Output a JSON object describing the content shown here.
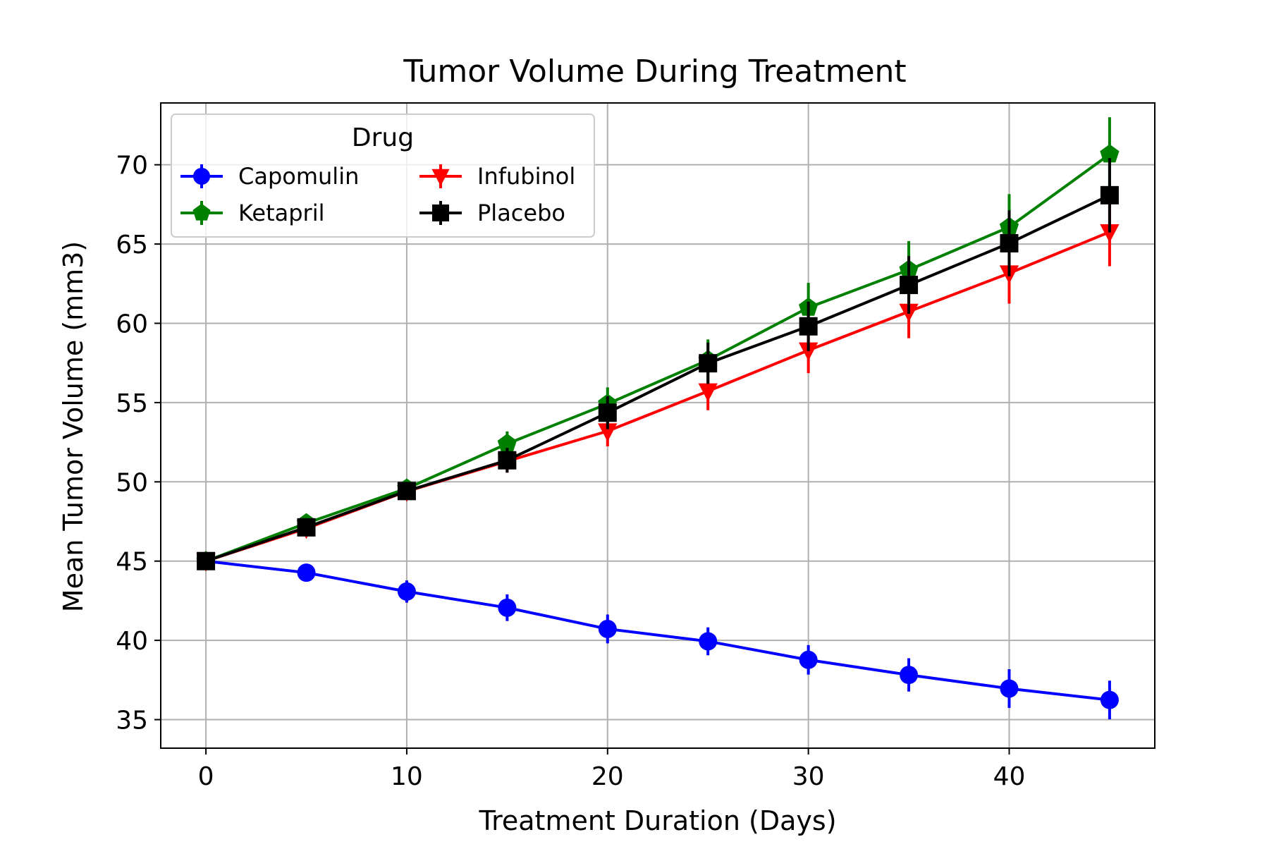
{
  "chart_data": {
    "type": "line",
    "title": "Tumor Volume During Treatment",
    "xlabel": "Treatment Duration (Days)",
    "ylabel": "Mean Tumor Volume (mm3)",
    "xlim": [
      -2.25,
      47.25
    ],
    "ylim": [
      33.2,
      73.9
    ],
    "xticks": [
      0,
      10,
      20,
      30,
      40
    ],
    "yticks": [
      35,
      40,
      45,
      50,
      55,
      60,
      65,
      70
    ],
    "grid": true,
    "legend": {
      "title": "Drug",
      "position": "top-left",
      "columns": 2
    },
    "x": [
      0,
      5,
      10,
      15,
      20,
      25,
      30,
      35,
      40,
      45
    ],
    "series": [
      {
        "name": "Capomulin",
        "color": "#0000ff",
        "marker": "circle",
        "values": [
          45.0,
          44.27,
          43.08,
          42.06,
          40.72,
          39.94,
          38.77,
          37.82,
          36.96,
          36.24
        ],
        "errors": [
          0.0,
          0.45,
          0.7,
          0.84,
          0.91,
          0.88,
          0.93,
          1.05,
          1.22,
          1.22
        ]
      },
      {
        "name": "Infubinol",
        "color": "#ff0000",
        "marker": "triangle-down",
        "values": [
          45.0,
          47.06,
          49.4,
          51.3,
          53.2,
          55.72,
          58.3,
          60.74,
          63.16,
          65.76
        ],
        "errors": [
          0.0,
          0.24,
          0.48,
          0.72,
          0.96,
          1.2,
          1.44,
          1.68,
          1.92,
          2.16
        ]
      },
      {
        "name": "Ketapril",
        "color": "#008000",
        "marker": "pentagon",
        "values": [
          45.0,
          47.39,
          49.58,
          52.4,
          54.92,
          57.68,
          60.99,
          63.37,
          66.07,
          70.66
        ],
        "errors": [
          0.0,
          0.26,
          0.52,
          0.78,
          1.04,
          1.3,
          1.56,
          1.82,
          2.08,
          2.34
        ]
      },
      {
        "name": "Placebo",
        "color": "#000000",
        "marker": "square",
        "values": [
          45.0,
          47.13,
          49.42,
          51.36,
          54.36,
          57.48,
          59.81,
          62.42,
          65.05,
          68.08
        ],
        "errors": [
          0.0,
          0.26,
          0.52,
          0.78,
          1.04,
          1.3,
          1.56,
          1.82,
          2.08,
          2.34
        ]
      }
    ]
  }
}
